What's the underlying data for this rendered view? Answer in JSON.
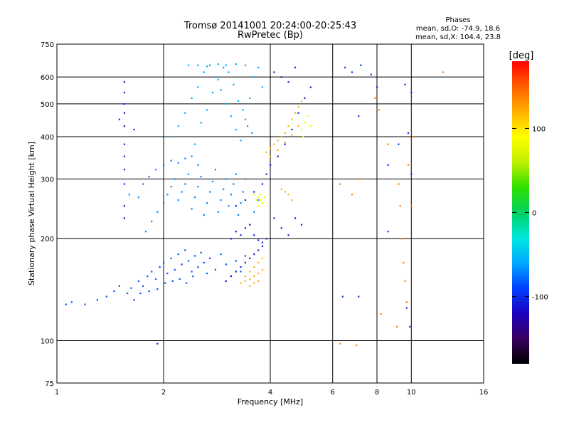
{
  "chart_data": {
    "type": "scatter",
    "title": "Tromsø 20141001 20:24:00-20:25:43",
    "subtitle": "RwPretec (Bp)",
    "xlabel": "Frequency [MHz]",
    "ylabel": "Stationary phase Virtual Height [km]",
    "x_scale": "log",
    "y_scale": "log",
    "xlim": [
      1,
      16
    ],
    "ylim": [
      75,
      750
    ],
    "x_ticks": [
      1,
      2,
      4,
      6,
      8,
      10,
      16
    ],
    "y_ticks": [
      75,
      100,
      200,
      300,
      400,
      500,
      600,
      750
    ],
    "grid_x": [
      2,
      4,
      6,
      8,
      10
    ],
    "grid_y": [
      100,
      200,
      300,
      400,
      500,
      600
    ],
    "grid": true,
    "stats": {
      "title": "Phases",
      "line1": "mean, sd,O: -74.9, 18.6",
      "line2": "mean, sd,X: 104.4, 23.8"
    },
    "colorbar": {
      "label": "[deg]",
      "ticks": [
        100,
        0,
        -100
      ],
      "range": [
        -180,
        180
      ],
      "colors": [
        "#000000",
        "#3b0060",
        "#1a00c0",
        "#0040ff",
        "#00a8ff",
        "#00e8e0",
        "#00d060",
        "#30e000",
        "#c0f000",
        "#ffff00",
        "#ffb000",
        "#ff6000",
        "#ff0000"
      ]
    },
    "series": [
      {
        "cluster": "o-mode-low",
        "phase": -85,
        "points": [
          [
            1.06,
            128
          ],
          [
            1.1,
            130
          ],
          [
            1.2,
            128
          ],
          [
            1.3,
            132
          ],
          [
            1.38,
            135
          ],
          [
            1.45,
            140
          ],
          [
            1.5,
            145
          ],
          [
            1.58,
            138
          ],
          [
            1.62,
            143
          ],
          [
            1.7,
            150
          ],
          [
            1.75,
            145
          ],
          [
            1.8,
            155
          ],
          [
            1.85,
            160
          ],
          [
            1.9,
            152
          ],
          [
            1.95,
            165
          ],
          [
            2.0,
            170
          ],
          [
            2.05,
            158
          ],
          [
            2.1,
            175
          ],
          [
            2.15,
            162
          ],
          [
            2.2,
            180
          ],
          [
            2.25,
            168
          ],
          [
            2.3,
            185
          ],
          [
            2.35,
            172
          ],
          [
            2.4,
            160
          ],
          [
            2.45,
            178
          ],
          [
            2.5,
            165
          ],
          [
            2.55,
            182
          ],
          [
            2.6,
            170
          ],
          [
            2.65,
            158
          ],
          [
            2.7,
            175
          ],
          [
            2.8,
            162
          ],
          [
            2.9,
            180
          ],
          [
            3.0,
            168
          ],
          [
            3.1,
            155
          ],
          [
            3.2,
            172
          ],
          [
            3.3,
            160
          ],
          [
            3.4,
            178
          ],
          [
            1.65,
            132
          ],
          [
            1.72,
            138
          ],
          [
            1.82,
            140
          ],
          [
            1.92,
            142
          ],
          [
            2.02,
            148
          ],
          [
            2.12,
            150
          ],
          [
            2.22,
            152
          ],
          [
            2.32,
            148
          ],
          [
            2.42,
            155
          ]
        ]
      },
      {
        "cluster": "o-mode-mid",
        "phase": -70,
        "points": [
          [
            1.78,
            210
          ],
          [
            1.85,
            225
          ],
          [
            1.92,
            240
          ],
          [
            2.0,
            255
          ],
          [
            2.05,
            270
          ],
          [
            2.1,
            285
          ],
          [
            2.15,
            300
          ],
          [
            2.2,
            260
          ],
          [
            2.25,
            275
          ],
          [
            2.3,
            290
          ],
          [
            2.35,
            310
          ],
          [
            2.4,
            245
          ],
          [
            2.45,
            265
          ],
          [
            2.5,
            285
          ],
          [
            2.55,
            305
          ],
          [
            2.6,
            235
          ],
          [
            2.65,
            255
          ],
          [
            2.7,
            275
          ],
          [
            2.75,
            295
          ],
          [
            2.8,
            320
          ],
          [
            2.85,
            240
          ],
          [
            2.9,
            260
          ],
          [
            2.95,
            280
          ],
          [
            3.0,
            300
          ],
          [
            3.05,
            250
          ],
          [
            3.1,
            270
          ],
          [
            3.15,
            290
          ],
          [
            3.2,
            310
          ],
          [
            3.25,
            235
          ],
          [
            3.3,
            255
          ],
          [
            3.35,
            275
          ],
          [
            3.4,
            300
          ],
          [
            3.5,
            220
          ],
          [
            3.6,
            240
          ],
          [
            3.7,
            260
          ],
          [
            1.6,
            270
          ],
          [
            1.7,
            265
          ],
          [
            1.75,
            290
          ],
          [
            1.82,
            305
          ],
          [
            1.9,
            320
          ],
          [
            2.0,
            330
          ],
          [
            2.1,
            340
          ],
          [
            2.2,
            335
          ],
          [
            2.3,
            345
          ],
          [
            2.4,
            350
          ],
          [
            2.5,
            330
          ]
        ]
      },
      {
        "cluster": "o-mode-high",
        "phase": -60,
        "points": [
          [
            2.1,
            400
          ],
          [
            2.2,
            430
          ],
          [
            2.3,
            470
          ],
          [
            2.4,
            520
          ],
          [
            2.5,
            560
          ],
          [
            2.6,
            620
          ],
          [
            2.7,
            650
          ],
          [
            2.8,
            600
          ],
          [
            2.9,
            550
          ],
          [
            3.0,
            500
          ],
          [
            3.1,
            460
          ],
          [
            3.2,
            420
          ],
          [
            3.3,
            390
          ],
          [
            3.4,
            450
          ],
          [
            3.5,
            520
          ],
          [
            3.6,
            600
          ],
          [
            3.7,
            640
          ],
          [
            3.8,
            560
          ],
          [
            2.45,
            380
          ],
          [
            2.55,
            440
          ],
          [
            2.65,
            480
          ],
          [
            2.75,
            540
          ],
          [
            2.85,
            590
          ],
          [
            2.95,
            640
          ],
          [
            3.05,
            620
          ],
          [
            3.15,
            570
          ],
          [
            3.25,
            510
          ],
          [
            3.35,
            480
          ],
          [
            3.45,
            430
          ],
          [
            3.55,
            410
          ],
          [
            2.35,
            650
          ],
          [
            2.5,
            650
          ],
          [
            2.65,
            645
          ],
          [
            2.85,
            655
          ],
          [
            3.0,
            650
          ],
          [
            3.2,
            655
          ],
          [
            3.4,
            650
          ]
        ]
      },
      {
        "cluster": "o-mode-dark",
        "phase": -105,
        "points": [
          [
            3.1,
            200
          ],
          [
            3.2,
            210
          ],
          [
            3.3,
            205
          ],
          [
            3.4,
            215
          ],
          [
            3.5,
            220
          ],
          [
            3.6,
            205
          ],
          [
            3.7,
            198
          ],
          [
            3.8,
            195
          ],
          [
            3.9,
            200
          ],
          [
            3.0,
            150
          ],
          [
            3.1,
            155
          ],
          [
            3.2,
            160
          ],
          [
            3.3,
            165
          ],
          [
            3.4,
            170
          ],
          [
            3.5,
            175
          ],
          [
            3.6,
            180
          ],
          [
            3.7,
            185
          ],
          [
            3.8,
            190
          ],
          [
            3.2,
            250
          ],
          [
            3.4,
            260
          ],
          [
            3.6,
            275
          ],
          [
            3.8,
            290
          ],
          [
            3.9,
            310
          ],
          [
            4.0,
            330
          ],
          [
            4.2,
            350
          ],
          [
            4.4,
            380
          ],
          [
            4.6,
            420
          ],
          [
            4.8,
            470
          ],
          [
            5.0,
            520
          ],
          [
            5.2,
            560
          ],
          [
            4.1,
            620
          ],
          [
            4.3,
            600
          ],
          [
            4.5,
            580
          ],
          [
            4.7,
            640
          ],
          [
            4.1,
            230
          ],
          [
            4.3,
            215
          ],
          [
            4.5,
            205
          ],
          [
            4.7,
            230
          ],
          [
            4.9,
            220
          ],
          [
            1.55,
            580
          ],
          [
            1.55,
            540
          ],
          [
            1.55,
            500
          ],
          [
            1.55,
            470
          ],
          [
            1.55,
            430
          ],
          [
            1.55,
            380
          ],
          [
            1.55,
            350
          ],
          [
            1.55,
            320
          ],
          [
            1.55,
            290
          ],
          [
            1.55,
            250
          ],
          [
            1.55,
            230
          ]
        ]
      },
      {
        "cluster": "x-mode",
        "phase": 120,
        "points": [
          [
            3.3,
            148
          ],
          [
            3.4,
            150
          ],
          [
            3.5,
            152
          ],
          [
            3.6,
            155
          ],
          [
            3.7,
            158
          ],
          [
            3.8,
            162
          ],
          [
            3.4,
            155
          ],
          [
            3.5,
            160
          ],
          [
            3.6,
            165
          ],
          [
            3.7,
            170
          ],
          [
            3.8,
            175
          ],
          [
            3.5,
            145
          ],
          [
            3.6,
            148
          ],
          [
            3.7,
            150
          ],
          [
            3.9,
            360
          ],
          [
            4.0,
            370
          ],
          [
            4.1,
            380
          ],
          [
            4.2,
            390
          ],
          [
            4.3,
            400
          ],
          [
            4.4,
            410
          ],
          [
            4.5,
            430
          ],
          [
            4.6,
            450
          ],
          [
            4.7,
            470
          ],
          [
            4.8,
            490
          ],
          [
            4.9,
            510
          ],
          [
            4.0,
            350
          ],
          [
            4.2,
            365
          ],
          [
            4.4,
            385
          ],
          [
            4.6,
            405
          ],
          [
            4.8,
            430
          ],
          [
            4.3,
            280
          ],
          [
            4.5,
            270
          ],
          [
            4.6,
            260
          ],
          [
            4.4,
            275
          ]
        ]
      },
      {
        "cluster": "x-mode-green",
        "phase": 80,
        "points": [
          [
            3.6,
            270
          ],
          [
            3.7,
            265
          ],
          [
            3.75,
            260
          ],
          [
            3.8,
            255
          ],
          [
            3.7,
            250
          ],
          [
            3.65,
            260
          ],
          [
            3.75,
            270
          ],
          [
            3.85,
            265
          ],
          [
            4.9,
            420
          ],
          [
            5.0,
            440
          ],
          [
            5.1,
            460
          ],
          [
            4.95,
            400
          ],
          [
            5.2,
            430
          ]
        ]
      },
      {
        "cluster": "scattered-noise",
        "phase": 140,
        "points": [
          [
            6.3,
            290
          ],
          [
            6.8,
            270
          ],
          [
            7.2,
            300
          ],
          [
            7.9,
            520
          ],
          [
            8.1,
            480
          ],
          [
            8.6,
            380
          ],
          [
            9.2,
            290
          ],
          [
            9.3,
            250
          ],
          [
            9.4,
            200
          ],
          [
            9.5,
            170
          ],
          [
            9.6,
            150
          ],
          [
            9.7,
            130
          ],
          [
            9.1,
            110
          ],
          [
            8.2,
            120
          ],
          [
            9.8,
            330
          ],
          [
            10.0,
            250
          ],
          [
            10.1,
            400
          ],
          [
            12.3,
            620
          ],
          [
            7.0,
            97
          ],
          [
            6.3,
            98
          ]
        ]
      },
      {
        "cluster": "scattered-noise-blue",
        "phase": -95,
        "points": [
          [
            7.2,
            650
          ],
          [
            7.7,
            610
          ],
          [
            6.5,
            640
          ],
          [
            6.8,
            620
          ],
          [
            8.0,
            560
          ],
          [
            9.6,
            570
          ],
          [
            10.0,
            540
          ],
          [
            9.2,
            380
          ],
          [
            9.8,
            410
          ],
          [
            10.0,
            310
          ],
          [
            8.6,
            330
          ],
          [
            7.1,
            460
          ],
          [
            6.4,
            135
          ],
          [
            7.1,
            135
          ],
          [
            9.7,
            125
          ],
          [
            9.9,
            110
          ],
          [
            8.6,
            210
          ],
          [
            1.92,
            98
          ],
          [
            1.5,
            450
          ],
          [
            1.65,
            420
          ]
        ]
      }
    ]
  }
}
